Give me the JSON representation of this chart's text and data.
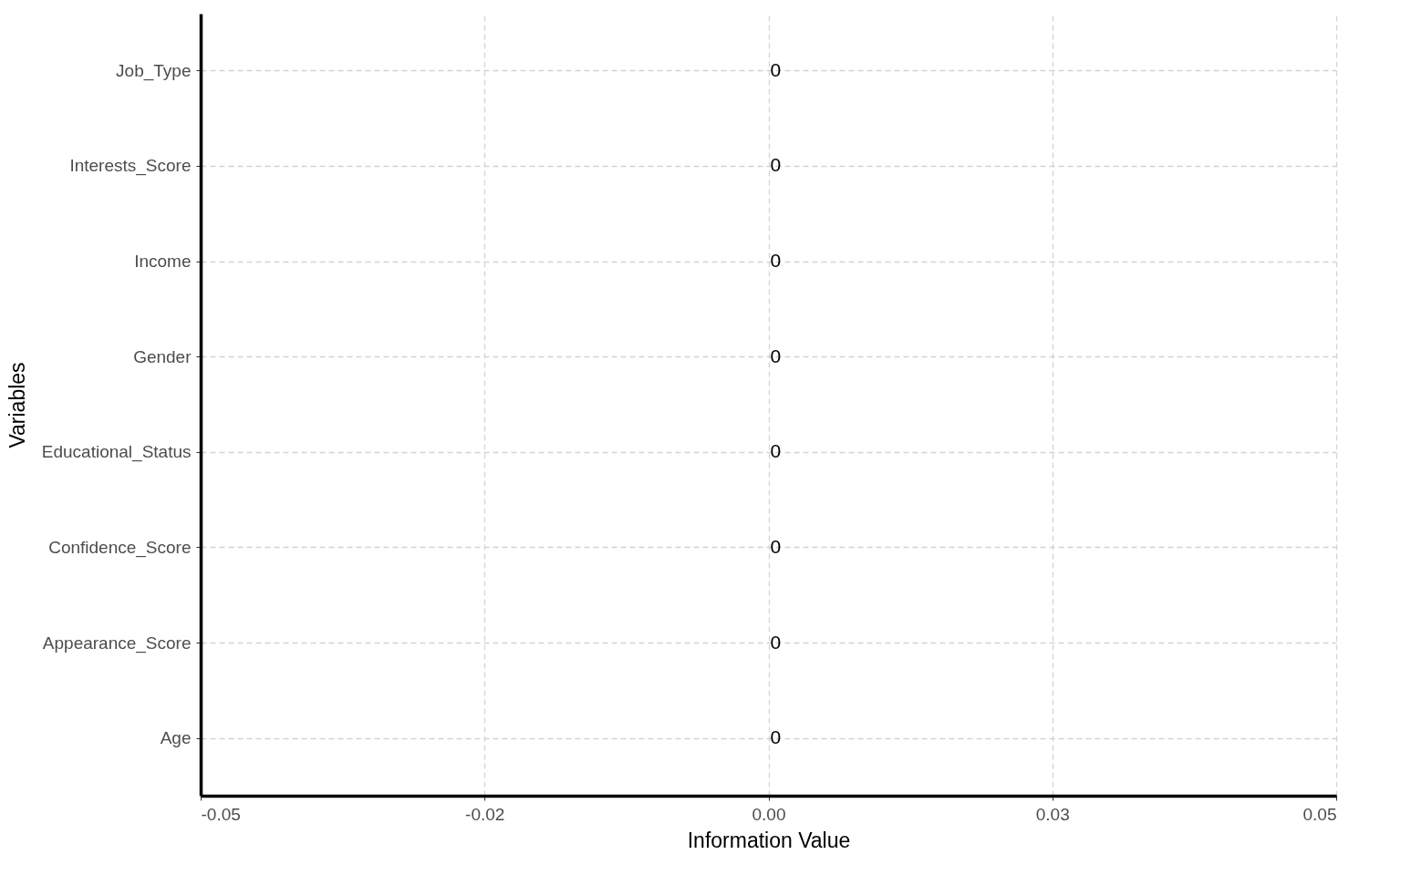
{
  "chart_data": {
    "type": "bar",
    "orientation": "horizontal",
    "xlabel": "Information Value",
    "ylabel": "Variables",
    "categories": [
      "Job_Type",
      "Interests_Score",
      "Income",
      "Gender",
      "Educational_Status",
      "Confidence_Score",
      "Appearance_Score",
      "Age"
    ],
    "values": [
      0,
      0,
      0,
      0,
      0,
      0,
      0,
      0
    ],
    "xlim": [
      -0.05,
      0.05
    ],
    "xticks": [
      -0.05,
      {
        "value": -0.025,
        "label": "-0.02"
      },
      {
        "value": 0,
        "label": "0.00"
      },
      {
        "value": 0.025,
        "label": "0.03"
      },
      0.05
    ],
    "grid": true,
    "data_labels": true
  }
}
